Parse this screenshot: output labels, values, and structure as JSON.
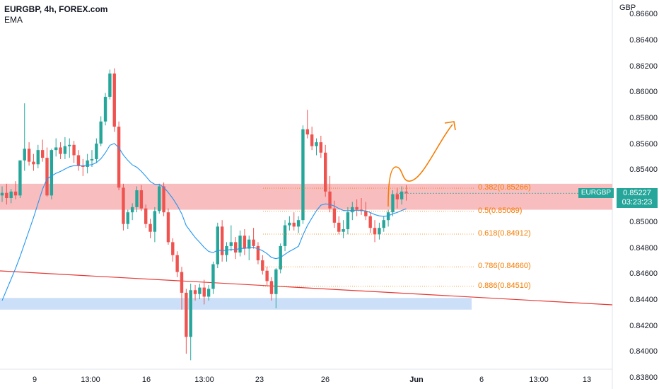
{
  "header": {
    "title": "EURGBP, 4h, FOREX.com",
    "indicator": "EMA"
  },
  "axis": {
    "unit": "GBP",
    "price_ticks": [
      "0.86600",
      "0.86400",
      "0.86200",
      "0.86000",
      "0.85800",
      "0.85600",
      "0.85400",
      "0.85200",
      "0.85000",
      "0.84800",
      "0.84600",
      "0.84400",
      "0.84200",
      "0.84000",
      "0.83800"
    ],
    "time_ticks": [
      "9",
      "13:00",
      "16",
      "13:00",
      "23",
      "26",
      "Jun",
      "6",
      "13:00",
      "13"
    ]
  },
  "current": {
    "symbol": "EURGBP",
    "price": "0.85227",
    "countdown": "03:23:23"
  },
  "fib_levels": [
    {
      "label": "0.382(0.85266)",
      "price": 0.85266
    },
    {
      "label": "0.5(0.85089)",
      "price": 0.85089
    },
    {
      "label": "0.618(0.84912)",
      "price": 0.84912
    },
    {
      "label": "0.786(0.84660)",
      "price": 0.8466
    },
    {
      "label": "0.886(0.84510)",
      "price": 0.8451
    }
  ],
  "colors": {
    "up": "#26a69a",
    "down": "#ef5350",
    "ema": "#2196f3",
    "fib": "#f57c00",
    "resistance_zone": "#f7b2b4",
    "support_zone": "#c7dbf7",
    "trendline": "#e53935",
    "projection": "#f57c00"
  },
  "chart_data": {
    "type": "candlestick",
    "symbol": "EURGBP",
    "timeframe": "4h",
    "ylim": [
      0.838,
      0.867
    ],
    "zones": [
      {
        "kind": "resistance",
        "from": 0.851,
        "to": 0.853
      },
      {
        "kind": "support",
        "from": 0.8433,
        "to": 0.8442
      }
    ],
    "ohlc": [
      [
        0.8521,
        0.8528,
        0.8516,
        0.8523
      ],
      [
        0.8523,
        0.853,
        0.8514,
        0.8519
      ],
      [
        0.8519,
        0.8526,
        0.8515,
        0.8524
      ],
      [
        0.8524,
        0.8532,
        0.8518,
        0.8521
      ],
      [
        0.8521,
        0.8548,
        0.8519,
        0.8548
      ],
      [
        0.8548,
        0.8592,
        0.854,
        0.8557
      ],
      [
        0.8557,
        0.8562,
        0.8544,
        0.8547
      ],
      [
        0.8547,
        0.8553,
        0.854,
        0.8545
      ],
      [
        0.8545,
        0.856,
        0.8542,
        0.8556
      ],
      [
        0.8556,
        0.8564,
        0.8547,
        0.855
      ],
      [
        0.855,
        0.8558,
        0.852,
        0.8521
      ],
      [
        0.8521,
        0.8557,
        0.8518,
        0.8556
      ],
      [
        0.8556,
        0.8565,
        0.8551,
        0.8558
      ],
      [
        0.8558,
        0.8562,
        0.8549,
        0.8553
      ],
      [
        0.8553,
        0.8566,
        0.8549,
        0.8559
      ],
      [
        0.8559,
        0.8565,
        0.855,
        0.856
      ],
      [
        0.856,
        0.8563,
        0.8546,
        0.8552
      ],
      [
        0.8552,
        0.8556,
        0.854,
        0.8544
      ],
      [
        0.8544,
        0.8549,
        0.8536,
        0.8543
      ],
      [
        0.8543,
        0.8553,
        0.8538,
        0.8548
      ],
      [
        0.8548,
        0.8556,
        0.8543,
        0.8549
      ],
      [
        0.8549,
        0.8565,
        0.8546,
        0.8561
      ],
      [
        0.8561,
        0.8582,
        0.8559,
        0.8578
      ],
      [
        0.8578,
        0.86,
        0.8575,
        0.8597
      ],
      [
        0.8597,
        0.8618,
        0.8595,
        0.8615
      ],
      [
        0.8615,
        0.8619,
        0.857,
        0.8574
      ],
      [
        0.8574,
        0.8578,
        0.8525,
        0.8527
      ],
      [
        0.8527,
        0.853,
        0.8494,
        0.8499
      ],
      [
        0.8499,
        0.851,
        0.8495,
        0.8508
      ],
      [
        0.8508,
        0.8515,
        0.8502,
        0.8512
      ],
      [
        0.8512,
        0.8528,
        0.8508,
        0.8525
      ],
      [
        0.8525,
        0.8529,
        0.8509,
        0.8511
      ],
      [
        0.8511,
        0.8514,
        0.8496,
        0.8499
      ],
      [
        0.8499,
        0.8503,
        0.8488,
        0.8493
      ],
      [
        0.8493,
        0.8512,
        0.8485,
        0.8509
      ],
      [
        0.8509,
        0.853,
        0.8507,
        0.8528
      ],
      [
        0.8528,
        0.8531,
        0.8505,
        0.8508
      ],
      [
        0.8508,
        0.8511,
        0.8483,
        0.8485
      ],
      [
        0.8485,
        0.8488,
        0.847,
        0.8475
      ],
      [
        0.8475,
        0.8478,
        0.8458,
        0.8462
      ],
      [
        0.8462,
        0.8466,
        0.8433,
        0.8446
      ],
      [
        0.8446,
        0.8449,
        0.8399,
        0.8412
      ],
      [
        0.8412,
        0.8453,
        0.8394,
        0.8448
      ],
      [
        0.8448,
        0.8452,
        0.844,
        0.8445
      ],
      [
        0.8445,
        0.8453,
        0.8441,
        0.845
      ],
      [
        0.845,
        0.8456,
        0.8437,
        0.8443
      ],
      [
        0.8443,
        0.8452,
        0.844,
        0.8449
      ],
      [
        0.8449,
        0.847,
        0.8445,
        0.8468
      ],
      [
        0.8468,
        0.85,
        0.8465,
        0.8497
      ],
      [
        0.8497,
        0.8502,
        0.847,
        0.8475
      ],
      [
        0.8475,
        0.8485,
        0.847,
        0.8482
      ],
      [
        0.8482,
        0.8498,
        0.8478,
        0.8485
      ],
      [
        0.8485,
        0.8489,
        0.8472,
        0.8477
      ],
      [
        0.8477,
        0.8494,
        0.8474,
        0.849
      ],
      [
        0.849,
        0.8495,
        0.8475,
        0.848
      ],
      [
        0.848,
        0.849,
        0.8471,
        0.8487
      ],
      [
        0.8487,
        0.8496,
        0.848,
        0.8482
      ],
      [
        0.8482,
        0.8485,
        0.8468,
        0.8471
      ],
      [
        0.8471,
        0.8475,
        0.846,
        0.8463
      ],
      [
        0.8463,
        0.8466,
        0.8452,
        0.8455
      ],
      [
        0.8455,
        0.8458,
        0.844,
        0.8445
      ],
      [
        0.8445,
        0.8465,
        0.8434,
        0.8464
      ],
      [
        0.8464,
        0.8484,
        0.8461,
        0.8482
      ],
      [
        0.8482,
        0.8502,
        0.8478,
        0.8498
      ],
      [
        0.8498,
        0.8505,
        0.8494,
        0.85
      ],
      [
        0.85,
        0.8508,
        0.8494,
        0.8497
      ],
      [
        0.8497,
        0.8505,
        0.8492,
        0.8502
      ],
      [
        0.8502,
        0.8575,
        0.8499,
        0.8572
      ],
      [
        0.8572,
        0.8587,
        0.8565,
        0.8568
      ],
      [
        0.8568,
        0.8574,
        0.8556,
        0.8559
      ],
      [
        0.8559,
        0.8565,
        0.8552,
        0.8562
      ],
      [
        0.8562,
        0.8567,
        0.855,
        0.8554
      ],
      [
        0.8554,
        0.856,
        0.852,
        0.8524
      ],
      [
        0.8524,
        0.8536,
        0.8508,
        0.8511
      ],
      [
        0.8511,
        0.8517,
        0.8496,
        0.85
      ],
      [
        0.85,
        0.8505,
        0.8491,
        0.8493
      ],
      [
        0.8493,
        0.8502,
        0.8488,
        0.8495
      ],
      [
        0.8495,
        0.8512,
        0.8491,
        0.8508
      ],
      [
        0.8508,
        0.8516,
        0.8502,
        0.8512
      ],
      [
        0.8512,
        0.8518,
        0.8505,
        0.851
      ],
      [
        0.851,
        0.8519,
        0.8506,
        0.8509
      ],
      [
        0.8509,
        0.8516,
        0.8502,
        0.8505
      ],
      [
        0.8505,
        0.8508,
        0.8492,
        0.8496
      ],
      [
        0.8496,
        0.8502,
        0.8485,
        0.8491
      ],
      [
        0.8491,
        0.85,
        0.8487,
        0.8496
      ],
      [
        0.8496,
        0.8505,
        0.8493,
        0.8502
      ],
      [
        0.8502,
        0.851,
        0.8497,
        0.8508
      ],
      [
        0.8508,
        0.8525,
        0.8505,
        0.8522
      ],
      [
        0.8522,
        0.8527,
        0.8511,
        0.8518
      ],
      [
        0.8518,
        0.8528,
        0.8514,
        0.8524
      ],
      [
        0.8524,
        0.8529,
        0.8517,
        0.8523
      ]
    ],
    "projection": "bullish path toward ~0.8580"
  }
}
